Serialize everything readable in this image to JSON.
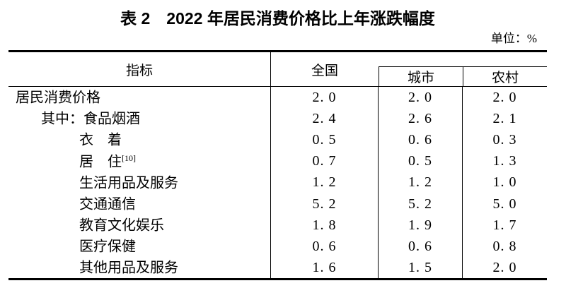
{
  "title": "表 2　2022 年居民消费价格比上年涨跌幅度",
  "unit_label": "单位：%",
  "table": {
    "columns": {
      "indicator": "指标",
      "national": "全国",
      "city": "城市",
      "rural": "农村"
    },
    "rows": [
      {
        "prefix": "",
        "label": "居民消费价格",
        "sup": "",
        "indent": 0,
        "national": "2.0",
        "city": "2.0",
        "rural": "2.0"
      },
      {
        "prefix": "其中：",
        "label": "食品烟酒",
        "sup": "",
        "indent": 1,
        "national": "2.4",
        "city": "2.6",
        "rural": "2.1"
      },
      {
        "prefix": "",
        "label": "衣　着",
        "sup": "",
        "indent": 2,
        "national": "0.5",
        "city": "0.6",
        "rural": "0.3"
      },
      {
        "prefix": "",
        "label": "居　住",
        "sup": "[10]",
        "indent": 2,
        "national": "0.7",
        "city": "0.5",
        "rural": "1.3"
      },
      {
        "prefix": "",
        "label": "生活用品及服务",
        "sup": "",
        "indent": 2,
        "national": "1.2",
        "city": "1.2",
        "rural": "1.0"
      },
      {
        "prefix": "",
        "label": "交通通信",
        "sup": "",
        "indent": 2,
        "national": "5.2",
        "city": "5.2",
        "rural": "5.0"
      },
      {
        "prefix": "",
        "label": "教育文化娱乐",
        "sup": "",
        "indent": 2,
        "national": "1.8",
        "city": "1.9",
        "rural": "1.7"
      },
      {
        "prefix": "",
        "label": "医疗保健",
        "sup": "",
        "indent": 2,
        "national": "0.6",
        "city": "0.6",
        "rural": "0.8"
      },
      {
        "prefix": "",
        "label": "其他用品及服务",
        "sup": "",
        "indent": 2,
        "national": "1.6",
        "city": "1.5",
        "rural": "2.0"
      }
    ]
  },
  "chart_data": {
    "type": "table",
    "title": "表 2　2022 年居民消费价格比上年涨跌幅度",
    "unit": "%",
    "categories": [
      "居民消费价格",
      "其中：食品烟酒",
      "衣着",
      "居住[10]",
      "生活用品及服务",
      "交通通信",
      "教育文化娱乐",
      "医疗保健",
      "其他用品及服务"
    ],
    "series": [
      {
        "name": "全国",
        "values": [
          2.0,
          2.4,
          0.5,
          0.7,
          1.2,
          5.2,
          1.8,
          0.6,
          1.6
        ]
      },
      {
        "name": "城市",
        "values": [
          2.0,
          2.6,
          0.6,
          0.5,
          1.2,
          5.2,
          1.9,
          0.6,
          1.5
        ]
      },
      {
        "name": "农村",
        "values": [
          2.0,
          2.1,
          0.3,
          1.3,
          1.0,
          5.0,
          1.7,
          0.8,
          2.0
        ]
      }
    ]
  },
  "colors": {
    "background": "#ffffff",
    "text": "#000000",
    "border": "#000000"
  }
}
